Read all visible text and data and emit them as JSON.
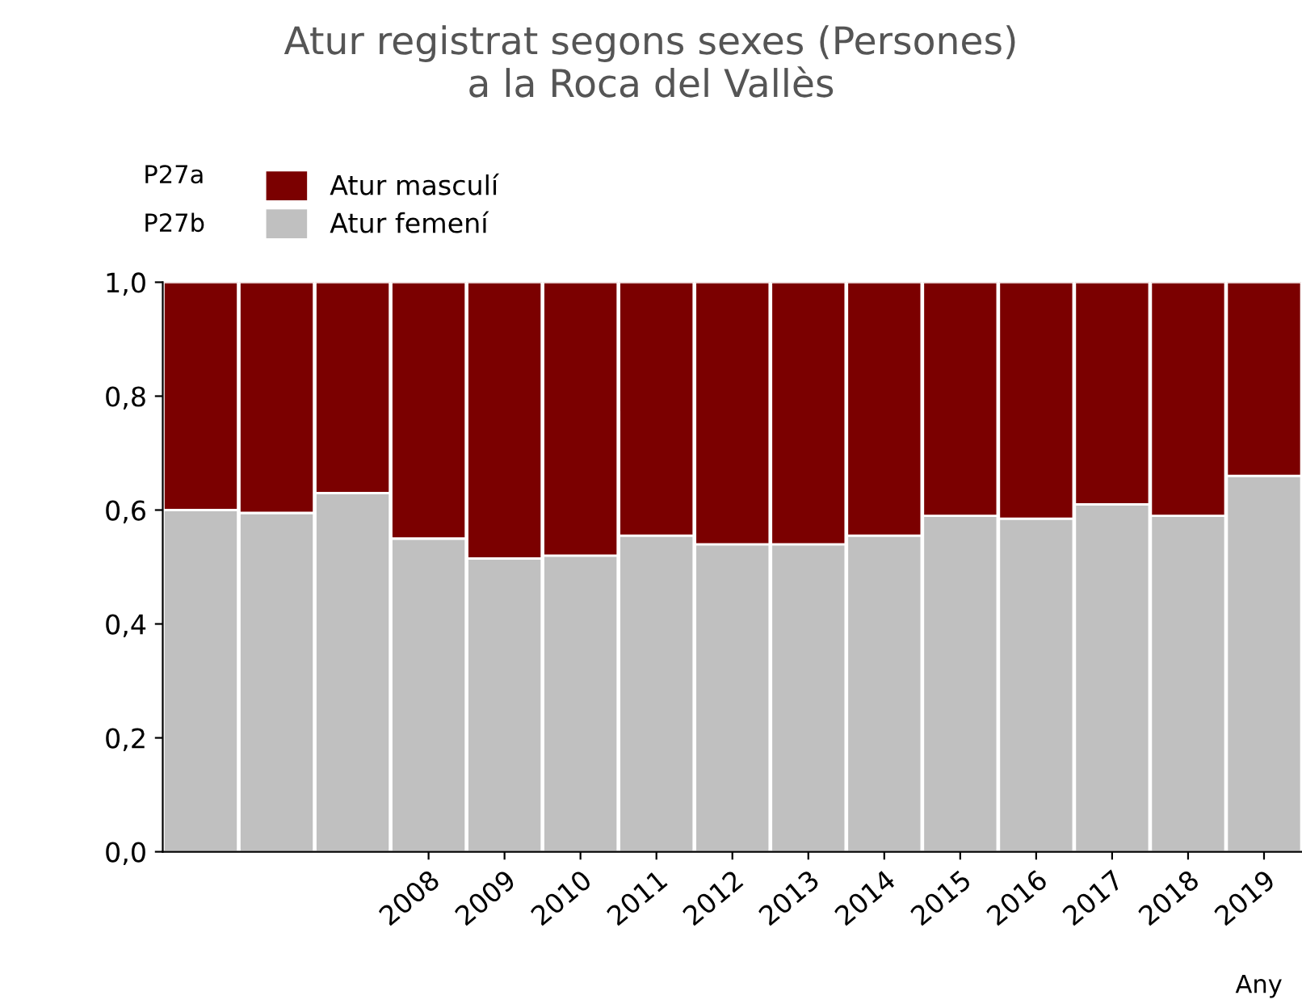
{
  "chart_data": {
    "type": "bar",
    "title": "Atur registrat segons sexes (Persones)\na la Roca del Vallès",
    "xlabel": "Any",
    "stacked": true,
    "legend": "top left",
    "categories": [
      null,
      null,
      null,
      "2008",
      "2009",
      "2010",
      "2011",
      "2012",
      "2013",
      "2014",
      "2015",
      "2016",
      "2017",
      "2018",
      "2019"
    ],
    "series": [
      {
        "name": "Atur femení",
        "color": "#c0c0c0",
        "values": [
          0.6,
          0.595,
          0.63,
          0.55,
          0.515,
          0.52,
          0.555,
          0.54,
          0.54,
          0.555,
          0.59,
          0.585,
          0.61,
          0.59,
          0.66
        ]
      },
      {
        "name": "Atur masculí",
        "color": "#7b0000",
        "values": [
          0.4,
          0.405,
          0.37,
          0.45,
          0.485,
          0.48,
          0.445,
          0.46,
          0.46,
          0.445,
          0.41,
          0.415,
          0.39,
          0.41,
          0.34
        ]
      }
    ],
    "ylim": [
      0,
      1
    ],
    "yticks": [
      {
        "value": 0,
        "label": "0,0"
      },
      {
        "value": 0.2,
        "label": "0,2"
      },
      {
        "value": 0.4,
        "label": "0,4"
      },
      {
        "value": 0.6,
        "label": "0,6"
      },
      {
        "value": 0.8,
        "label": "0,8"
      },
      {
        "value": 1,
        "label": "1,0"
      }
    ],
    "annotations": [
      "P27b",
      "P27a"
    ]
  }
}
